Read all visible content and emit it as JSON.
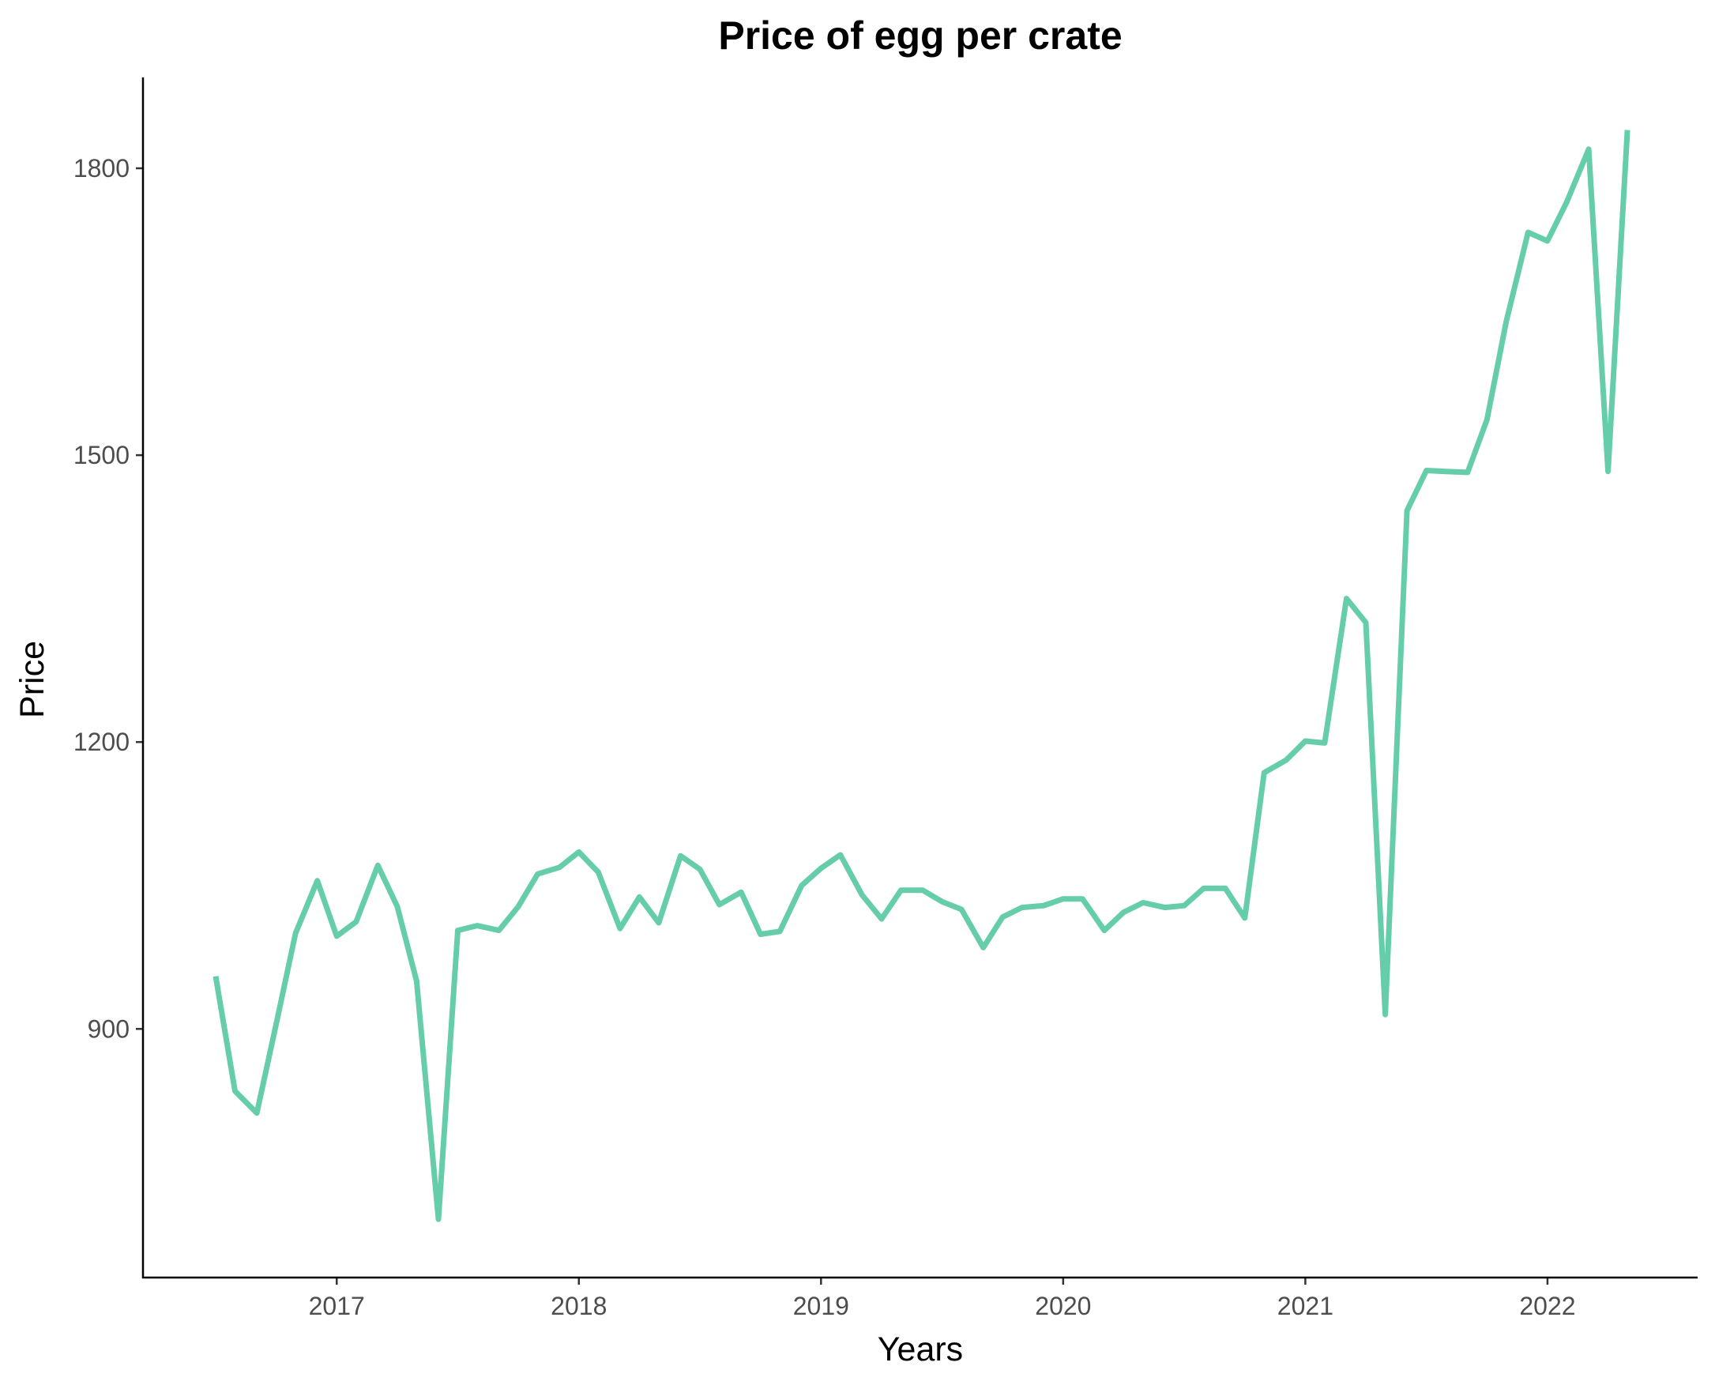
{
  "chart_data": {
    "type": "line",
    "title": "Price of egg per crate",
    "xlabel": "Years",
    "ylabel": "Price",
    "x_ticks": [
      {
        "label": "2017",
        "value": 2017.0
      },
      {
        "label": "2018",
        "value": 2018.0
      },
      {
        "label": "2019",
        "value": 2019.0
      },
      {
        "label": "2020",
        "value": 2020.0
      },
      {
        "label": "2021",
        "value": 2021.0
      },
      {
        "label": "2022",
        "value": 2022.0
      }
    ],
    "y_ticks": [
      900,
      1200,
      1500,
      1800
    ],
    "xlim": [
      2016.2,
      2022.62
    ],
    "ylim": [
      640,
      1895
    ],
    "grid": false,
    "legend": "none",
    "line_color": "#66CDAA",
    "series": [
      {
        "x": [
          2016.5,
          2016.58,
          2016.67,
          2016.75,
          2016.83,
          2016.92,
          2017.0,
          2017.08,
          2017.17,
          2017.25,
          2017.33,
          2017.42,
          2017.5,
          2017.58,
          2017.67,
          2017.75,
          2017.83,
          2017.92,
          2018.0,
          2018.08,
          2018.17,
          2018.25,
          2018.33,
          2018.42,
          2018.5,
          2018.58,
          2018.67,
          2018.75,
          2018.83,
          2018.92,
          2019.0,
          2019.08,
          2019.17,
          2019.25,
          2019.33,
          2019.42,
          2019.5,
          2019.58,
          2019.67,
          2019.75,
          2019.83,
          2019.92,
          2020.0,
          2020.08,
          2020.17,
          2020.25,
          2020.33,
          2020.42,
          2020.5,
          2020.58,
          2020.67,
          2020.75,
          2020.83,
          2020.92,
          2021.0,
          2021.08,
          2021.17,
          2021.25,
          2021.33,
          2021.42,
          2021.5,
          2021.58,
          2021.67,
          2021.75,
          2021.83,
          2021.92,
          2022.0,
          2022.08,
          2022.17,
          2022.25,
          2022.33
        ],
        "values": [
          955,
          835,
          812,
          905,
          1000,
          1055,
          997,
          1012,
          1071,
          1028,
          950,
          701,
          1003,
          1008,
          1003,
          1028,
          1062,
          1069,
          1085,
          1064,
          1005,
          1038,
          1011,
          1081,
          1067,
          1030,
          1043,
          999,
          1002,
          1050,
          1068,
          1082,
          1040,
          1015,
          1045,
          1045,
          1033,
          1025,
          985,
          1017,
          1027,
          1029,
          1036,
          1036,
          1003,
          1022,
          1032,
          1027,
          1029,
          1047,
          1047,
          1016,
          1168,
          1181,
          1201,
          1199,
          1350,
          1325,
          915,
          1442,
          1484,
          1483,
          1482,
          1537,
          1640,
          1733,
          1724,
          1765,
          1820,
          1483,
          1840
        ]
      }
    ]
  }
}
